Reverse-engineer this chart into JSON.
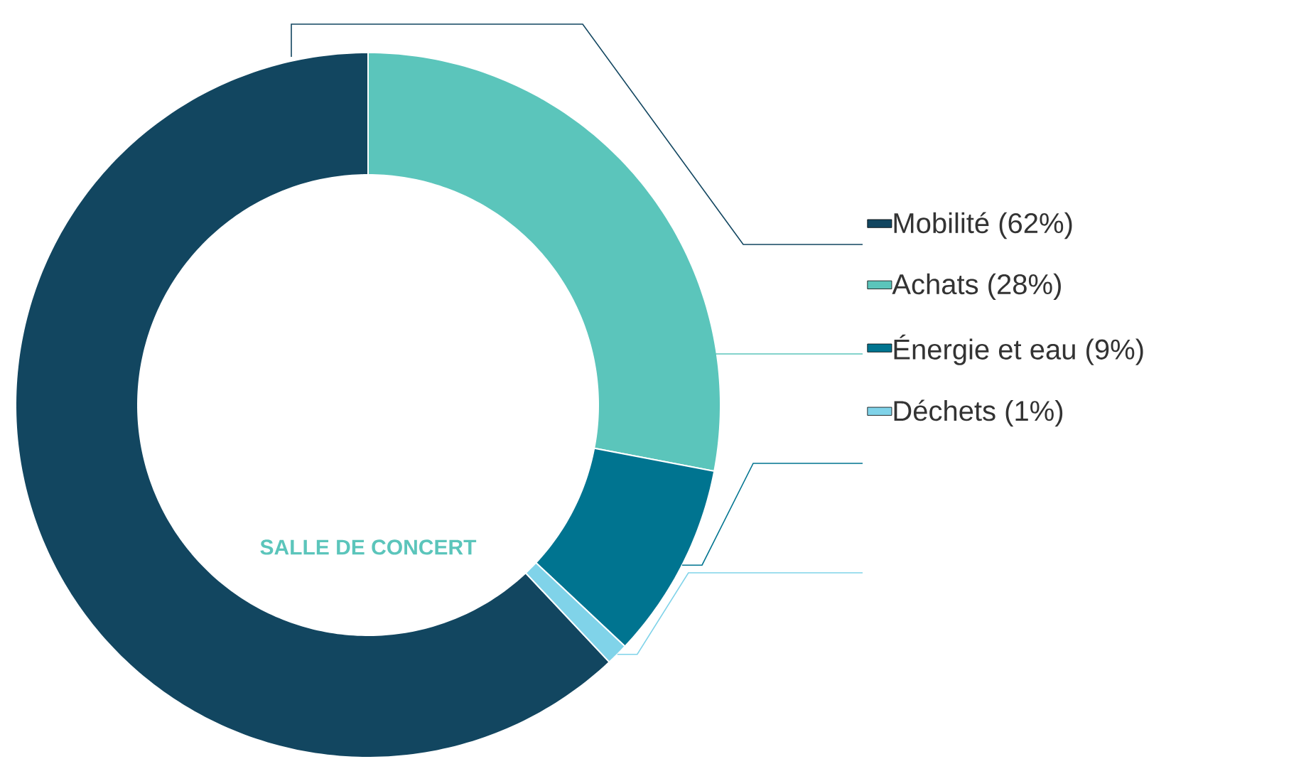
{
  "chart_data": {
    "type": "donut",
    "categories": [
      "Mobilité (62%)",
      "Achats (28%)",
      "Énergie et eau (9%)",
      "Déchets (1%)"
    ],
    "values": [
      62,
      28,
      9,
      1
    ],
    "colors": [
      "#124660",
      "#5bc5bb",
      "#007490",
      "#80d3e9"
    ],
    "legend": "right",
    "annotations": [
      "SALLE DE CONCERT"
    ]
  }
}
